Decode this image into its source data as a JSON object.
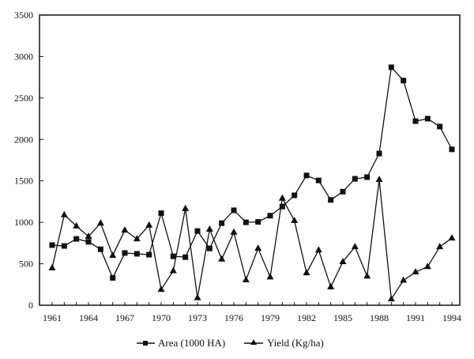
{
  "chart_data": {
    "type": "line",
    "title": "",
    "xlabel": "",
    "ylabel": "",
    "ylim": [
      0,
      3500
    ],
    "yticks": [
      0,
      500,
      1000,
      1500,
      2000,
      2500,
      3000,
      3500
    ],
    "xtick_labels": [
      "1961",
      "1964",
      "1967",
      "1970",
      "1973",
      "1976",
      "1979",
      "1982",
      "1985",
      "1988",
      "1991",
      "1994"
    ],
    "x": [
      1961,
      1962,
      1963,
      1964,
      1965,
      1966,
      1967,
      1968,
      1969,
      1970,
      1971,
      1972,
      1973,
      1974,
      1975,
      1976,
      1977,
      1978,
      1979,
      1980,
      1981,
      1982,
      1983,
      1984,
      1985,
      1986,
      1987,
      1988,
      1989,
      1990,
      1991,
      1992,
      1993,
      1994
    ],
    "grid": false,
    "legend_position": "bottom",
    "series": [
      {
        "name": "Area (1000 HA)",
        "marker": "square",
        "values": [
          725,
          715,
          800,
          765,
          675,
          330,
          630,
          620,
          610,
          1110,
          590,
          580,
          895,
          685,
          990,
          1145,
          1000,
          1005,
          1080,
          1190,
          1325,
          1565,
          1505,
          1270,
          1370,
          1525,
          1545,
          1830,
          2870,
          2710,
          2220,
          2250,
          2155,
          1880
        ]
      },
      {
        "name": "Yield (Kg/ha)",
        "marker": "triangle",
        "values": [
          450,
          1090,
          955,
          830,
          990,
          600,
          905,
          800,
          965,
          190,
          415,
          1165,
          90,
          915,
          555,
          880,
          305,
          685,
          340,
          1290,
          1020,
          390,
          665,
          220,
          525,
          705,
          350,
          1515,
          75,
          300,
          400,
          465,
          705,
          810
        ]
      }
    ]
  },
  "legend": {
    "items": [
      {
        "label": "Area (1000 HA)",
        "marker": "square"
      },
      {
        "label": "Yield (Kg/ha)",
        "marker": "triangle"
      }
    ]
  }
}
